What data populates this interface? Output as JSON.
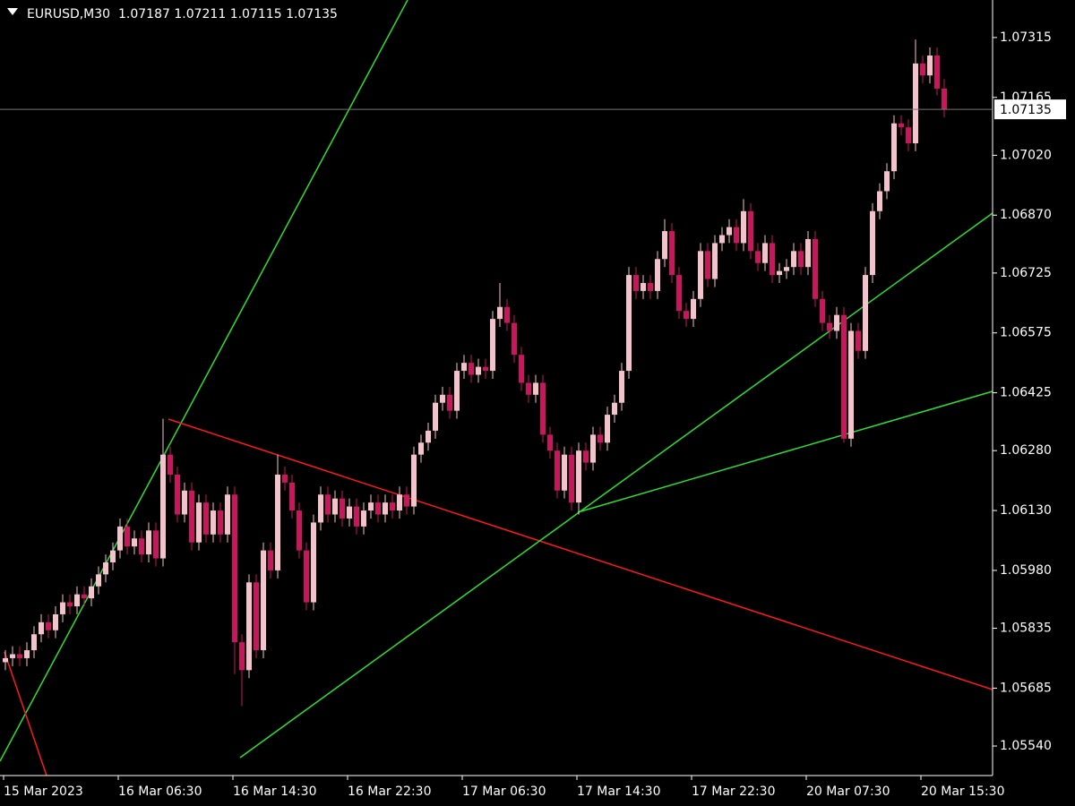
{
  "chart_data": {
    "type": "candlestick",
    "title": "EURUSD,M30",
    "up_color": "#f4c2cc",
    "down_color": "#c8175d",
    "ylim": [
      1.05466,
      1.07409
    ],
    "yticks": [
      1.07315,
      1.07165,
      {
        "value": 1.0702,
        "label": "1.07020"
      },
      {
        "value": 1.0687,
        "label": "1.06870"
      },
      1.06725,
      1.06575,
      1.06425,
      {
        "value": 1.0628,
        "label": "1.06280"
      },
      {
        "value": 1.0613,
        "label": "1.06130"
      },
      {
        "value": 1.0598,
        "label": "1.05980"
      },
      1.05835,
      1.05685,
      {
        "value": 1.0554,
        "label": "1.05540"
      }
    ],
    "categories": [
      "15 Mar 2023",
      null,
      null,
      null,
      null,
      null,
      null,
      null,
      null,
      null,
      null,
      null,
      null,
      null,
      null,
      null,
      "16 Mar 06:30",
      null,
      null,
      null,
      null,
      null,
      null,
      null,
      null,
      null,
      null,
      null,
      null,
      null,
      null,
      null,
      "16 Mar 14:30",
      null,
      null,
      null,
      null,
      null,
      null,
      null,
      null,
      null,
      null,
      null,
      null,
      null,
      null,
      null,
      "16 Mar 22:30",
      null,
      null,
      null,
      null,
      null,
      null,
      null,
      null,
      null,
      null,
      null,
      null,
      null,
      null,
      null,
      "17 Mar 06:30",
      null,
      null,
      null,
      null,
      null,
      null,
      null,
      null,
      null,
      null,
      null,
      null,
      null,
      null,
      null,
      "17 Mar 14:30",
      null,
      null,
      null,
      null,
      null,
      null,
      null,
      null,
      null,
      null,
      null,
      null,
      null,
      null,
      null,
      "17 Mar 22:30",
      null,
      null,
      null,
      null,
      null,
      null,
      null,
      null,
      null,
      null,
      null,
      null,
      null,
      null,
      null,
      "20 Mar 07:30",
      null,
      null,
      null,
      null,
      null,
      null,
      null,
      null,
      null,
      null,
      null,
      null,
      null,
      null,
      null,
      "20 Mar 15:30",
      null,
      null,
      null
    ],
    "open": [
      1.0575,
      1.0576,
      1.0577,
      1.0576,
      1.0578,
      1.0582,
      1.0585,
      1.0583,
      1.0587,
      1.059,
      1.0589,
      1.0592,
      1.0591,
      1.0594,
      1.0597,
      1.06,
      1.0603,
      1.0609,
      1.0604,
      1.0606,
      1.0602,
      1.0608,
      1.0601,
      1.0627,
      1.0622,
      1.0612,
      1.0618,
      1.0605,
      1.0615,
      1.0607,
      1.0613,
      1.0607,
      1.0617,
      1.058,
      1.0573,
      1.0595,
      1.0578,
      1.0603,
      1.0598,
      1.0622,
      1.062,
      1.0613,
      1.0603,
      1.059,
      1.061,
      1.0617,
      1.0612,
      1.0616,
      1.0611,
      1.0614,
      1.0609,
      1.0613,
      1.0615,
      1.0612,
      1.0615,
      1.0613,
      1.0617,
      1.0614,
      1.0627,
      1.063,
      1.0633,
      1.064,
      1.0642,
      1.0638,
      1.0648,
      1.065,
      1.0647,
      1.0649,
      1.0648,
      1.0661,
      1.0664,
      1.066,
      1.0652,
      1.0645,
      1.0642,
      1.0645,
      1.0632,
      1.0628,
      1.0618,
      1.0627,
      1.0615,
      1.0628,
      1.0625,
      1.0632,
      1.063,
      1.0637,
      1.064,
      1.0648,
      1.0672,
      1.0668,
      1.067,
      1.0668,
      1.0676,
      1.0683,
      1.0672,
      1.0663,
      1.0661,
      1.0666,
      1.0678,
      1.0671,
      1.068,
      1.0682,
      1.0684,
      1.068,
      1.0688,
      1.0678,
      1.0675,
      1.068,
      1.0672,
      1.0673,
      1.0674,
      1.0678,
      1.0674,
      1.0681,
      1.0666,
      1.066,
      1.0658,
      1.0662,
      1.0631,
      1.0658,
      1.0653,
      1.0672,
      1.0688,
      1.0693,
      1.0698,
      1.071,
      1.0709,
      1.0705,
      1.0725,
      1.0722,
      1.0727,
      1.07187
    ],
    "high": [
      1.0578,
      1.0579,
      1.0579,
      1.058,
      1.0584,
      1.0587,
      1.0587,
      1.0589,
      1.0592,
      1.0592,
      1.0594,
      1.0594,
      1.0596,
      1.0599,
      1.0602,
      1.0605,
      1.0611,
      1.0611,
      1.0608,
      1.0608,
      1.061,
      1.061,
      1.0636,
      1.0629,
      1.0624,
      1.062,
      1.062,
      1.0617,
      1.0617,
      1.0615,
      1.0615,
      1.0619,
      1.0619,
      1.0582,
      1.0597,
      1.0597,
      1.0605,
      1.0605,
      1.0627,
      1.0624,
      1.0622,
      1.0615,
      1.0605,
      1.0612,
      1.0619,
      1.0619,
      1.0618,
      1.0618,
      1.0616,
      1.0616,
      1.0615,
      1.0617,
      1.0617,
      1.0617,
      1.0617,
      1.0619,
      1.0619,
      1.0629,
      1.0632,
      1.0635,
      1.0642,
      1.0644,
      1.0644,
      1.065,
      1.0652,
      1.0652,
      1.0651,
      1.0651,
      1.0663,
      1.067,
      1.0666,
      1.0662,
      1.0654,
      1.0647,
      1.0647,
      1.0647,
      1.0634,
      1.063,
      1.0629,
      1.0629,
      1.063,
      1.063,
      1.0634,
      1.0634,
      1.0639,
      1.0642,
      1.065,
      1.0674,
      1.0674,
      1.0672,
      1.0672,
      1.0678,
      1.0686,
      1.0685,
      1.0674,
      1.0665,
      1.0668,
      1.068,
      1.068,
      1.0682,
      1.0684,
      1.0686,
      1.0686,
      1.0691,
      1.069,
      1.068,
      1.0682,
      1.0682,
      1.0675,
      1.0676,
      1.068,
      1.068,
      1.0683,
      1.0683,
      1.0668,
      1.0662,
      1.0664,
      1.0664,
      1.066,
      1.066,
      1.0674,
      1.069,
      1.0695,
      1.07,
      1.0712,
      1.0712,
      1.0711,
      1.0731,
      1.0727,
      1.0729,
      1.0729,
      1.07211
    ],
    "low": [
      1.0573,
      1.0574,
      1.0574,
      1.0574,
      1.0576,
      1.058,
      1.0581,
      1.0581,
      1.0585,
      1.0587,
      1.0587,
      1.0589,
      1.0589,
      1.0592,
      1.0595,
      1.0598,
      1.0601,
      1.0602,
      1.0602,
      1.06,
      1.06,
      1.0599,
      1.0599,
      1.062,
      1.061,
      1.061,
      1.0603,
      1.0603,
      1.0605,
      1.0605,
      1.0605,
      1.0605,
      1.0572,
      1.0564,
      1.0571,
      1.0576,
      1.0576,
      1.0596,
      1.0596,
      1.0618,
      1.0611,
      1.0601,
      1.0588,
      1.0588,
      1.0608,
      1.061,
      1.061,
      1.0609,
      1.0609,
      1.0607,
      1.0607,
      1.0611,
      1.061,
      1.061,
      1.0611,
      1.0611,
      1.0612,
      1.0612,
      1.0625,
      1.0628,
      1.0631,
      1.0638,
      1.0636,
      1.0636,
      1.0646,
      1.0645,
      1.0645,
      1.0646,
      1.0646,
      1.0659,
      1.0658,
      1.065,
      1.0643,
      1.064,
      1.064,
      1.063,
      1.0626,
      1.0616,
      1.0616,
      1.0613,
      1.0612,
      1.0623,
      1.0623,
      1.0628,
      1.0628,
      1.0635,
      1.0638,
      1.0646,
      1.0666,
      1.0666,
      1.0666,
      1.0666,
      1.0674,
      1.067,
      1.0661,
      1.0659,
      1.0659,
      1.0664,
      1.0669,
      1.0669,
      1.0678,
      1.068,
      1.0678,
      1.0678,
      1.0676,
      1.0673,
      1.0673,
      1.067,
      1.067,
      1.0671,
      1.0672,
      1.0672,
      1.0672,
      1.0664,
      1.0658,
      1.0656,
      1.0656,
      1.063,
      1.0629,
      1.0651,
      1.0651,
      1.067,
      1.0686,
      1.0691,
      1.0696,
      1.0707,
      1.0703,
      1.0703,
      1.072,
      1.072,
      1.0717,
      1.07115
    ],
    "close": [
      1.0576,
      1.0577,
      1.0576,
      1.0578,
      1.0582,
      1.0585,
      1.0583,
      1.0587,
      1.059,
      1.0589,
      1.0592,
      1.0591,
      1.0594,
      1.0597,
      1.06,
      1.0603,
      1.0609,
      1.0604,
      1.0606,
      1.0602,
      1.0608,
      1.0601,
      1.0627,
      1.0622,
      1.0612,
      1.0618,
      1.0605,
      1.0615,
      1.0607,
      1.0613,
      1.0607,
      1.0617,
      1.058,
      1.0573,
      1.0595,
      1.0578,
      1.0603,
      1.0598,
      1.0622,
      1.062,
      1.0613,
      1.0603,
      1.059,
      1.061,
      1.0617,
      1.0612,
      1.0616,
      1.0611,
      1.0614,
      1.0609,
      1.0613,
      1.0615,
      1.0612,
      1.0615,
      1.0613,
      1.0617,
      1.0614,
      1.0627,
      1.063,
      1.0633,
      1.064,
      1.0642,
      1.0638,
      1.0648,
      1.065,
      1.0647,
      1.0649,
      1.0648,
      1.0661,
      1.0664,
      1.066,
      1.0652,
      1.0645,
      1.0642,
      1.0645,
      1.0632,
      1.0628,
      1.0618,
      1.0627,
      1.0615,
      1.0628,
      1.0625,
      1.0632,
      1.063,
      1.0637,
      1.064,
      1.0648,
      1.0672,
      1.0668,
      1.067,
      1.0668,
      1.0676,
      1.0683,
      1.0672,
      1.0663,
      1.0661,
      1.0666,
      1.0678,
      1.0671,
      1.068,
      1.0682,
      1.0684,
      1.068,
      1.0688,
      1.0678,
      1.0675,
      1.068,
      1.0672,
      1.0673,
      1.0674,
      1.0678,
      1.0674,
      1.0681,
      1.0666,
      1.066,
      1.0658,
      1.0662,
      1.0631,
      1.0658,
      1.0653,
      1.0672,
      1.0688,
      1.0693,
      1.0698,
      1.071,
      1.0709,
      1.0705,
      1.0725,
      1.0722,
      1.0727,
      1.07187,
      1.07135
    ]
  }
}
